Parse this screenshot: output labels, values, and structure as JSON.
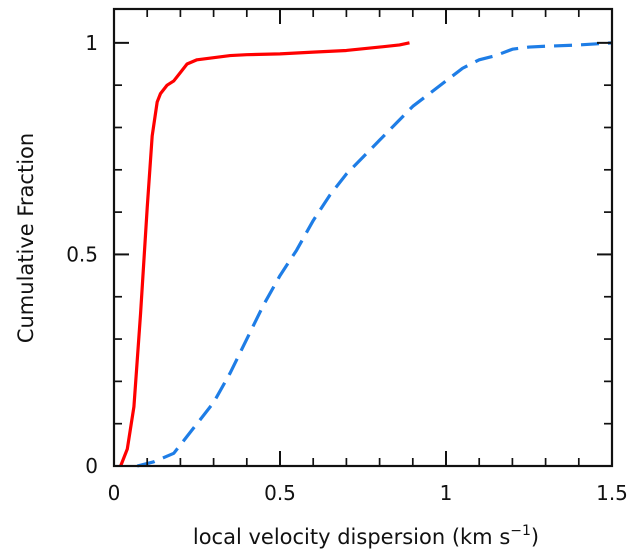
{
  "chart_data": {
    "type": "line",
    "title": "",
    "xlabel": "local velocity dispersion (km s",
    "xlabel_superscript": "−1",
    "xlabel_close": ")",
    "ylabel": "Cumulative Fraction",
    "xlim": [
      0,
      1.5
    ],
    "ylim": [
      0,
      1.08
    ],
    "x_ticks": [
      0,
      0.5,
      1,
      1.5
    ],
    "x_tick_labels": [
      "0",
      "0.5",
      "1",
      "1.5"
    ],
    "y_ticks": [
      0,
      0.5,
      1
    ],
    "y_tick_labels": [
      "0",
      "0.5",
      "1"
    ],
    "grid": false,
    "legend": "none",
    "series": [
      {
        "style": "solid",
        "color": "#ff0000",
        "points": [
          [
            0.02,
            0.0
          ],
          [
            0.04,
            0.04
          ],
          [
            0.06,
            0.14
          ],
          [
            0.08,
            0.36
          ],
          [
            0.1,
            0.61
          ],
          [
            0.115,
            0.78
          ],
          [
            0.13,
            0.86
          ],
          [
            0.14,
            0.88
          ],
          [
            0.16,
            0.9
          ],
          [
            0.18,
            0.91
          ],
          [
            0.2,
            0.93
          ],
          [
            0.22,
            0.95
          ],
          [
            0.25,
            0.96
          ],
          [
            0.3,
            0.965
          ],
          [
            0.35,
            0.97
          ],
          [
            0.4,
            0.972
          ],
          [
            0.5,
            0.974
          ],
          [
            0.6,
            0.978
          ],
          [
            0.7,
            0.982
          ],
          [
            0.8,
            0.99
          ],
          [
            0.86,
            0.995
          ],
          [
            0.89,
            1.0
          ]
        ]
      },
      {
        "style": "dashed",
        "color": "#1e7de6",
        "points": [
          [
            0.07,
            0.0
          ],
          [
            0.12,
            0.01
          ],
          [
            0.18,
            0.03
          ],
          [
            0.22,
            0.07
          ],
          [
            0.26,
            0.11
          ],
          [
            0.3,
            0.15
          ],
          [
            0.35,
            0.22
          ],
          [
            0.4,
            0.3
          ],
          [
            0.45,
            0.38
          ],
          [
            0.5,
            0.45
          ],
          [
            0.55,
            0.51
          ],
          [
            0.6,
            0.58
          ],
          [
            0.65,
            0.64
          ],
          [
            0.7,
            0.69
          ],
          [
            0.75,
            0.73
          ],
          [
            0.8,
            0.77
          ],
          [
            0.85,
            0.81
          ],
          [
            0.9,
            0.85
          ],
          [
            0.95,
            0.88
          ],
          [
            1.0,
            0.91
          ],
          [
            1.05,
            0.94
          ],
          [
            1.1,
            0.96
          ],
          [
            1.15,
            0.97
          ],
          [
            1.2,
            0.985
          ],
          [
            1.25,
            0.99
          ],
          [
            1.3,
            0.992
          ],
          [
            1.4,
            0.995
          ],
          [
            1.5,
            1.0
          ]
        ]
      }
    ]
  }
}
